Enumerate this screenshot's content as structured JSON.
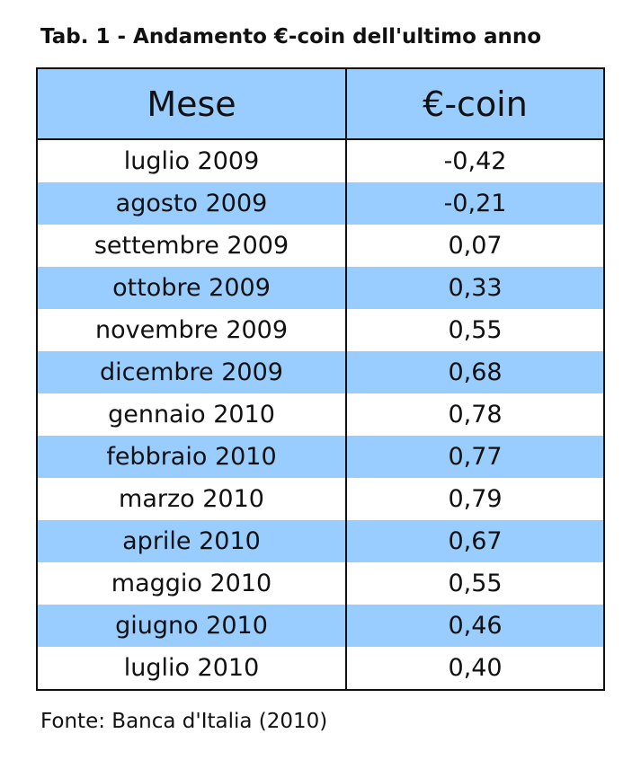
{
  "title": "Tab. 1 - Andamento €-coin dell'ultimo anno",
  "table": {
    "header": [
      "Mese",
      "€-coin"
    ],
    "rows": [
      [
        "luglio 2009",
        "-0,42"
      ],
      [
        "agosto 2009",
        "-0,21"
      ],
      [
        "settembre 2009",
        "0,07"
      ],
      [
        "ottobre 2009",
        "0,33"
      ],
      [
        "novembre 2009",
        "0,55"
      ],
      [
        "dicembre 2009",
        "0,68"
      ],
      [
        "gennaio 2010",
        "0,78"
      ],
      [
        "febbraio 2010",
        "0,77"
      ],
      [
        "marzo 2010",
        "0,79"
      ],
      [
        "aprile 2010",
        "0,67"
      ],
      [
        "maggio 2010",
        "0,55"
      ],
      [
        "giugno 2010",
        "0,46"
      ],
      [
        "luglio 2010",
        "0,40"
      ]
    ]
  },
  "source": "Fonte: Banca d'Italia (2010)"
}
